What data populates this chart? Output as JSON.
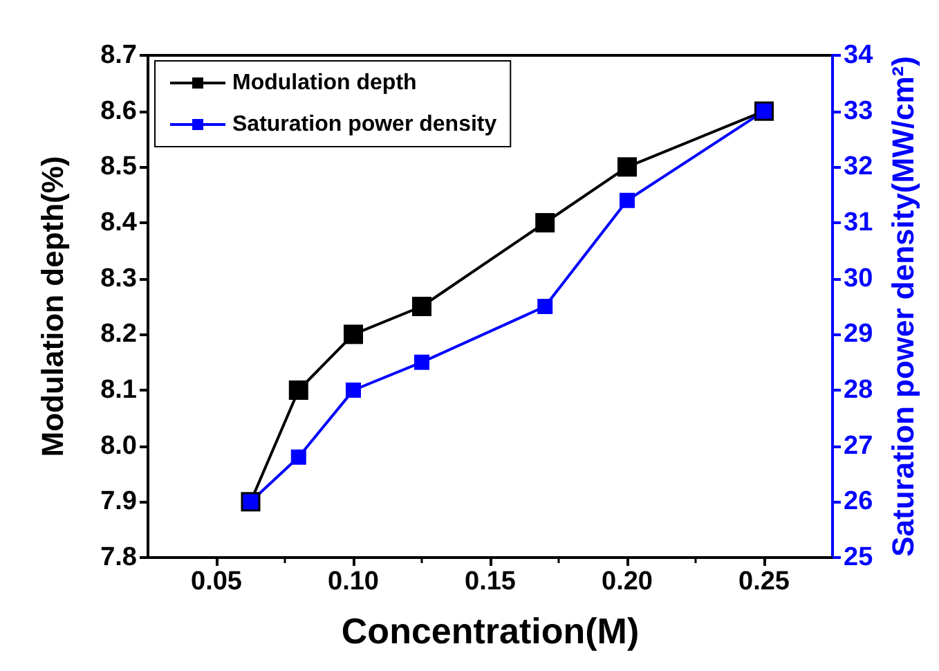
{
  "chart_data": {
    "type": "line",
    "xlabel": "Concentration(M)",
    "ylabel": "Modulation depth(%)",
    "y2label": "Saturation power density(MW/cm²)",
    "x": [
      0.0625,
      0.08,
      0.1,
      0.125,
      0.17,
      0.2,
      0.25
    ],
    "series": [
      {
        "name": "Modulation depth",
        "color": "#000000",
        "values": [
          7.9,
          8.1,
          8.2,
          8.25,
          8.4,
          8.5,
          8.6
        ]
      },
      {
        "name": "Saturation power density",
        "color": "#0000ff",
        "axis": "y2",
        "values": [
          26,
          26.8,
          28,
          28.5,
          29.5,
          31.4,
          33
        ]
      }
    ],
    "xlim": [
      0.025,
      0.275
    ],
    "xticks": [
      {
        "value": 0.05,
        "label": "0.05"
      },
      {
        "value": 0.1,
        "label": "0.10"
      },
      {
        "value": 0.15,
        "label": "0.15"
      },
      {
        "value": 0.2,
        "label": "0.20"
      },
      {
        "value": 0.25,
        "label": "0.25"
      }
    ],
    "ylim": [
      7.8,
      8.7
    ],
    "yticks": [
      {
        "value": 7.8,
        "label": "7.8"
      },
      {
        "value": 7.9,
        "label": "7.9"
      },
      {
        "value": 8.0,
        "label": "8.0"
      },
      {
        "value": 8.1,
        "label": "8.1"
      },
      {
        "value": 8.2,
        "label": "8.2"
      },
      {
        "value": 8.3,
        "label": "8.3"
      },
      {
        "value": 8.4,
        "label": "8.4"
      },
      {
        "value": 8.5,
        "label": "8.5"
      },
      {
        "value": 8.6,
        "label": "8.6"
      },
      {
        "value": 8.7,
        "label": "8.7"
      }
    ],
    "y2lim": [
      25,
      34
    ],
    "y2ticks": [
      25,
      26,
      27,
      28,
      29,
      30,
      31,
      32,
      33,
      34
    ],
    "marker": "square",
    "line_style": "solid",
    "grid": false,
    "legend": "top left"
  }
}
